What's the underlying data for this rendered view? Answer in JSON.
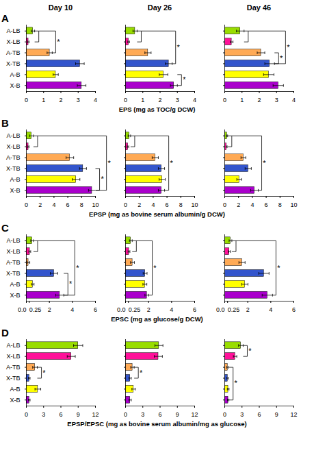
{
  "chart_data": [
    {
      "type": "bar",
      "orientation": "horizontal",
      "title": "Day 10",
      "categories": [
        "A-LB",
        "X-LB",
        "A-TB",
        "X-TB",
        "A-B",
        "X-B"
      ],
      "colors": [
        "#99dd00",
        "#ff1199",
        "#ffaa55",
        "#3355cc",
        "#ffff00",
        "#aa00cc"
      ],
      "values": [
        0.38,
        0.12,
        1.35,
        3.1,
        1.7,
        3.2
      ],
      "errors": [
        0.1,
        0.04,
        0.15,
        0.25,
        0.15,
        0.25
      ],
      "xlim": [
        0,
        4
      ],
      "xticks": [
        0,
        1,
        2,
        3,
        4
      ],
      "annotations": [
        {
          "text": "A"
        },
        {
          "text": "*",
          "cats": [
            "A-LB",
            "A-TB"
          ],
          "inner": [
            "A-LB",
            "X-LB"
          ]
        }
      ]
    },
    {
      "type": "bar",
      "orientation": "horizontal",
      "title": "Day 26",
      "xlabel": "EPS (mg as TOC/g DCW)",
      "tick_labels": "x",
      "categories": [
        "A-LB",
        "X-LB",
        "A-TB",
        "X-TB",
        "A-B",
        "X-B"
      ],
      "colors": [
        "#99dd00",
        "#ff1199",
        "#ffaa55",
        "#3355cc",
        "#ffff00",
        "#aa00cc"
      ],
      "values": [
        0.55,
        0.18,
        1.3,
        2.5,
        2.2,
        2.8
      ],
      "errors": [
        0.12,
        0.05,
        0.18,
        0.2,
        0.25,
        0.2
      ],
      "xlim": [
        0,
        4
      ],
      "xticks": [
        0,
        1,
        2,
        3,
        4
      ],
      "annotations": [
        {
          "text": "*",
          "cats": [
            "A-LB",
            "X-TB"
          ],
          "inner": [
            "A-LB",
            "X-LB"
          ]
        },
        {
          "text": "*",
          "cats": [
            "A-B",
            "X-B"
          ]
        }
      ]
    },
    {
      "type": "bar",
      "orientation": "horizontal",
      "title": "Day 46",
      "tick_labels": "x",
      "categories": [
        "A-LB",
        "X-LB",
        "A-TB",
        "X-TB",
        "A-B",
        "X-B"
      ],
      "colors": [
        "#99dd00",
        "#ff1199",
        "#ffaa55",
        "#3355cc",
        "#ffff00",
        "#aa00cc"
      ],
      "values": [
        0.9,
        0.4,
        2.1,
        2.6,
        2.55,
        3.1
      ],
      "errors": [
        0.22,
        0.08,
        0.22,
        0.28,
        0.3,
        0.3
      ],
      "xlim": [
        0,
        4
      ],
      "xticks": [
        0,
        1,
        2,
        3,
        4
      ],
      "annotations": [
        {
          "text": "*",
          "cats": [
            "A-LB",
            "X-TB"
          ],
          "inner": [
            "A-LB",
            "X-LB"
          ]
        },
        {
          "text": "*",
          "cats": [
            "A-TB",
            "X-TB"
          ]
        }
      ]
    },
    {
      "type": "bar",
      "orientation": "horizontal",
      "categories": [
        "A-LB",
        "X-LB",
        "A-TB",
        "X-TB",
        "A-B",
        "X-B"
      ],
      "colors": [
        "#99dd00",
        "#ff1199",
        "#ffaa55",
        "#3355cc",
        "#ffff00",
        "#aa00cc"
      ],
      "values": [
        0.75,
        0.3,
        6.3,
        8.2,
        7.2,
        9.5
      ],
      "errors": [
        0.28,
        0.09,
        0.55,
        0.5,
        0.55,
        0.5
      ],
      "xlim": [
        0,
        10
      ],
      "xticks": [
        0,
        2,
        4,
        6,
        8,
        10
      ],
      "annotations": [
        {
          "text": "B"
        },
        {
          "text": "*",
          "cats": [
            "A-LB",
            "X-B"
          ],
          "inner": [
            "A-LB",
            "X-LB"
          ]
        },
        {
          "text": "*",
          "cats": [
            "X-TB",
            "X-B"
          ]
        }
      ]
    },
    {
      "type": "bar",
      "orientation": "horizontal",
      "xlabel": "EPSP (mg as bovine serum albumin/g DCW)",
      "tick_labels": "x",
      "categories": [
        "A-LB",
        "X-LB",
        "A-TB",
        "X-TB",
        "A-B",
        "X-B"
      ],
      "colors": [
        "#99dd00",
        "#ff1199",
        "#ffaa55",
        "#3355cc",
        "#ffff00",
        "#aa00cc"
      ],
      "values": [
        0.55,
        0.35,
        4.3,
        5.2,
        5.3,
        5.2
      ],
      "errors": [
        0.18,
        0.12,
        0.45,
        0.45,
        0.45,
        0.45
      ],
      "xlim": [
        0,
        10
      ],
      "xticks": [
        0,
        2,
        4,
        6,
        8,
        10
      ],
      "annotations": [
        {
          "text": "*",
          "cats": [
            "A-LB",
            "X-B"
          ],
          "inner": [
            "A-LB",
            "X-LB"
          ]
        }
      ]
    },
    {
      "type": "bar",
      "orientation": "horizontal",
      "tick_labels": "x",
      "categories": [
        "A-LB",
        "X-LB",
        "A-TB",
        "X-TB",
        "A-B",
        "X-B"
      ],
      "colors": [
        "#99dd00",
        "#ff1199",
        "#ffaa55",
        "#3355cc",
        "#ffff00",
        "#aa00cc"
      ],
      "values": [
        0.32,
        0.27,
        2.7,
        3.4,
        2.1,
        4.3
      ],
      "errors": [
        0.1,
        0.08,
        0.35,
        0.45,
        0.35,
        0.55
      ],
      "xlim": [
        0,
        10
      ],
      "xticks": [
        0,
        2,
        4,
        6,
        8,
        10
      ],
      "annotations": [
        {
          "text": "*",
          "cats": [
            "A-LB",
            "X-B"
          ],
          "inner": [
            "A-LB",
            "X-LB"
          ]
        }
      ]
    },
    {
      "type": "bar",
      "orientation": "horizontal",
      "categories": [
        "A-LB",
        "X-LB",
        "A-TB",
        "X-TB",
        "A-B",
        "X-B"
      ],
      "colors": [
        "#99dd00",
        "#ff1199",
        "#ffaa55",
        "#3355cc",
        "#ffff00",
        "#aa00cc"
      ],
      "values": [
        0.5,
        0.3,
        0.18,
        2.4,
        0.55,
        2.9
      ],
      "errors": [
        0.12,
        0.08,
        0.12,
        0.32,
        0.12,
        0.35
      ],
      "xlim": [
        0,
        6
      ],
      "xticks": [
        {
          "value": 0,
          "label": "0.0"
        },
        0.25,
        2,
        4,
        6
      ],
      "annotations": [
        {
          "text": "C"
        },
        {
          "text": "*",
          "cats": [
            "A-LB",
            "X-B"
          ],
          "inner": [
            "A-LB",
            "X-LB"
          ]
        },
        {
          "text": "*",
          "cats": [
            "X-TB",
            "X-B"
          ]
        }
      ]
    },
    {
      "type": "bar",
      "orientation": "horizontal",
      "xlabel": "EPSC (mg as glucose/g DCW)",
      "tick_labels": "x",
      "categories": [
        "A-LB",
        "X-LB",
        "A-TB",
        "X-TB",
        "A-B",
        "X-B"
      ],
      "colors": [
        "#99dd00",
        "#ff1199",
        "#ffaa55",
        "#3355cc",
        "#ffff00",
        "#aa00cc"
      ],
      "values": [
        0.46,
        0.3,
        0.6,
        1.7,
        1.68,
        1.85
      ],
      "errors": [
        0.12,
        0.08,
        0.17,
        0.17,
        0.17,
        0.17
      ],
      "xlim": [
        0,
        6
      ],
      "xticks": [
        {
          "value": 0,
          "label": "0.0"
        },
        0.25,
        2,
        4,
        6
      ],
      "annotations": [
        {
          "text": "*",
          "cats": [
            "A-LB",
            "X-B"
          ],
          "inner": [
            "A-LB",
            "X-LB"
          ]
        }
      ]
    },
    {
      "type": "bar",
      "orientation": "horizontal",
      "tick_labels": "x",
      "categories": [
        "A-LB",
        "X-LB",
        "A-TB",
        "X-TB",
        "A-B",
        "X-B"
      ],
      "colors": [
        "#99dd00",
        "#ff1199",
        "#ffaa55",
        "#3355cc",
        "#ffff00",
        "#aa00cc"
      ],
      "values": [
        0.5,
        0.4,
        1.5,
        3.4,
        1.75,
        3.7
      ],
      "errors": [
        0.12,
        0.1,
        0.27,
        0.45,
        0.27,
        0.45
      ],
      "xlim": [
        0,
        6
      ],
      "xticks": [
        {
          "value": 0,
          "label": "0.0"
        },
        0.25,
        2,
        4,
        6
      ],
      "annotations": [
        {
          "text": "*",
          "cats": [
            "A-LB",
            "X-B"
          ],
          "inner": [
            "A-LB",
            "X-LB"
          ]
        }
      ]
    },
    {
      "type": "bar",
      "orientation": "horizontal",
      "categories": [
        "A-LB",
        "X-LB",
        "A-TB",
        "X-TB",
        "A-B",
        "X-B"
      ],
      "colors": [
        "#99dd00",
        "#ff1199",
        "#ffaa55",
        "#3355cc",
        "#ffff00",
        "#aa00cc"
      ],
      "values": [
        9.0,
        7.8,
        1.5,
        0.5,
        2.0,
        0.5
      ],
      "errors": [
        0.8,
        0.7,
        0.4,
        0.15,
        0.5,
        0.15
      ],
      "xlim": [
        0,
        12
      ],
      "xticks": [
        0,
        3,
        6,
        9,
        12
      ],
      "annotations": [
        {
          "text": "D"
        },
        {
          "text": "*",
          "cats": [
            "A-TB",
            "X-TB"
          ]
        }
      ]
    },
    {
      "type": "bar",
      "orientation": "horizontal",
      "xlabel": "EPSP/EPSC (mg as bovine serum albumin/mg as glucose)",
      "tick_labels": "x",
      "categories": [
        "A-LB",
        "X-LB",
        "A-TB",
        "X-TB",
        "A-B",
        "X-B"
      ],
      "colors": [
        "#99dd00",
        "#ff1199",
        "#ffaa55",
        "#3355cc",
        "#ffff00",
        "#aa00cc"
      ],
      "values": [
        5.8,
        5.7,
        1.2,
        0.8,
        1.4,
        0.8
      ],
      "errors": [
        0.7,
        0.7,
        0.3,
        0.2,
        0.3,
        0.2
      ],
      "xlim": [
        0,
        12
      ],
      "xticks": [
        0,
        3,
        6,
        9,
        12
      ],
      "annotations": [
        {
          "text": "*",
          "cats": [
            "A-TB",
            "X-TB"
          ]
        }
      ]
    },
    {
      "type": "bar",
      "orientation": "horizontal",
      "tick_labels": "x",
      "categories": [
        "A-LB",
        "X-LB",
        "A-TB",
        "X-TB",
        "A-B",
        "X-B"
      ],
      "colors": [
        "#99dd00",
        "#ff1199",
        "#ffaa55",
        "#3355cc",
        "#ffff00",
        "#aa00cc"
      ],
      "values": [
        2.8,
        1.8,
        0.5,
        0.5,
        0.6,
        0.6
      ],
      "errors": [
        0.4,
        0.3,
        0.15,
        0.13,
        0.15,
        0.13
      ],
      "xlim": [
        0,
        12
      ],
      "xticks": [
        0,
        3,
        6,
        9,
        12
      ],
      "annotations": [
        {
          "text": "*",
          "cats": [
            "A-LB",
            "X-LB"
          ]
        },
        {
          "text": "*",
          "cats": [
            "A-TB",
            "X-B"
          ]
        }
      ]
    }
  ]
}
